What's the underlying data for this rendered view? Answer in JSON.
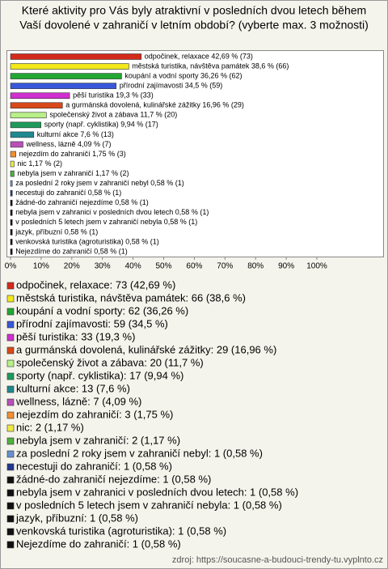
{
  "chart_data": {
    "type": "hbar",
    "title": [
      "Které aktivity pro Vás byly atraktivní v posledních dvou letech během",
      "Vaší dovolené v zahraničí v letním období? (vyberte max. 3 možnosti)"
    ],
    "categories": [
      "odpočinek, relaxace",
      "městská turistika, návštěva památek",
      "koupání a vodní sporty",
      "přírodní zajímavosti",
      "pěší turistika",
      "a gurmánská dovolená, kulinářské zážitky",
      "společenský život a zábava",
      "sporty (např. cyklistika)",
      "kulturní akce",
      "wellness, lázně",
      "nejezdím do zahraničí",
      "nic",
      "nebyla jsem v zahraničí",
      "za poslední 2 roky jsem v zahraničí nebyl",
      "necestuji do zahraničí",
      "žádné-do zahraničí nejezdíme",
      "nebyla jsem v zahranici v posledních dvou letech",
      "v posledních 5 letech jsem v zahraničí nebyla",
      "jazyk, příbuzní",
      "venkovská turistika (agroturistika)",
      "Nejezdíme do zahraničí"
    ],
    "values": [
      42.69,
      38.6,
      36.26,
      34.5,
      19.3,
      16.96,
      11.7,
      9.94,
      7.6,
      4.09,
      1.75,
      1.17,
      1.17,
      0.58,
      0.58,
      0.58,
      0.58,
      0.58,
      0.58,
      0.58,
      0.58
    ],
    "value_labels": [
      "odpočinek, relaxace 42,69 % (73)",
      "městská turistika, návštěva památek 38,6 % (66)",
      "koupání a vodní sporty 36,26 % (62)",
      "přírodní zajímavosti 34,5 % (59)",
      "pěší turistika 19,3 % (33)",
      "a gurmánská dovolená, kulinářské zážitky 16,96 % (29)",
      "společenský život a zábava 11,7 % (20)",
      "sporty (např. cyklistika) 9,94 % (17)",
      "kulturní akce 7,6 % (13)",
      "wellness, lázně 4,09 % (7)",
      "nejezdím do zahraničí 1,75 % (3)",
      "nic 1,17 % (2)",
      "nebyla jsem v zahraničí 1,17 % (2)",
      "za poslední 2 roky jsem v zahraničí nebyl 0,58 % (1)",
      "necestuji do zahraničí 0,58 % (1)",
      "žádné-do zahraničí nejezdíme 0,58 % (1)",
      "nebyla jsem v zahranici v posledních dvou letech 0,58 % (1)",
      "v posledních 5 letech jsem v zahraničí nebyla 0,58 % (1)",
      "jazyk, příbuzní 0,58 % (1)",
      "venkovská turistika (agroturistika) 0,58 % (1)",
      "Nejezdíme do zahraničí 0,58 % (1)"
    ],
    "legend_labels": [
      "odpočinek, relaxace: 73 (42,69 %)",
      "městská turistika, návštěva památek: 66 (38,6 %)",
      "koupání a vodní sporty: 62 (36,26 %)",
      "přírodní zajímavosti: 59 (34,5 %)",
      "pěší turistika: 33 (19,3 %)",
      "a gurmánská dovolená, kulinářské zážitky: 29 (16,96 %)",
      "společenský život a zábava: 20 (11,7 %)",
      "sporty (např. cyklistika): 17 (9,94 %)",
      "kulturní akce: 13 (7,6 %)",
      "wellness, lázně: 7 (4,09 %)",
      "nejezdím do zahraničí: 3 (1,75 %)",
      "nic: 2 (1,17 %)",
      "nebyla jsem v zahraničí: 2 (1,17 %)",
      "za poslední 2 roky jsem v zahraničí nebyl: 1 (0,58 %)",
      "necestuji do zahraničí: 1 (0,58 %)",
      "žádné-do zahraničí nejezdíme: 1 (0,58 %)",
      "nebyla jsem v zahranici v posledních dvou letech: 1 (0,58 %)",
      "v posledních 5 letech jsem v zahraničí nebyla: 1 (0,58 %)",
      "jazyk, příbuzní: 1 (0,58 %)",
      "venkovská turistika (agroturistika): 1 (0,58 %)",
      "Nejezdíme do zahraničí: 1 (0,58 %)"
    ],
    "colors": [
      "#d42a1c",
      "#f2e81a",
      "#22a832",
      "#3858d8",
      "#d030d0",
      "#d84818",
      "#b8f088",
      "#1e9a5a",
      "#208890",
      "#b850b8",
      "#f09030",
      "#f0e840",
      "#50b040",
      "#6890d0",
      "#203890",
      "#101010",
      "#101010",
      "#101010",
      "#101010",
      "#101010",
      "#101010"
    ],
    "xlim": [
      0,
      100
    ],
    "xticks": [
      {
        "value": 0,
        "label": "0%"
      },
      {
        "value": 10,
        "label": "10%"
      },
      {
        "value": 20,
        "label": "20%"
      },
      {
        "value": 30,
        "label": "30%"
      },
      {
        "value": 40,
        "label": "40%"
      },
      {
        "value": 50,
        "label": "50%"
      },
      {
        "value": 60,
        "label": "60%"
      },
      {
        "value": 70,
        "label": "70%"
      },
      {
        "value": 80,
        "label": "80%"
      },
      {
        "value": 90,
        "label": "90%"
      },
      {
        "value": 100,
        "label": "100%"
      }
    ],
    "source": "zdroj: https://soucasne-a-budouci-trendy-tu.vyplnto.cz"
  }
}
